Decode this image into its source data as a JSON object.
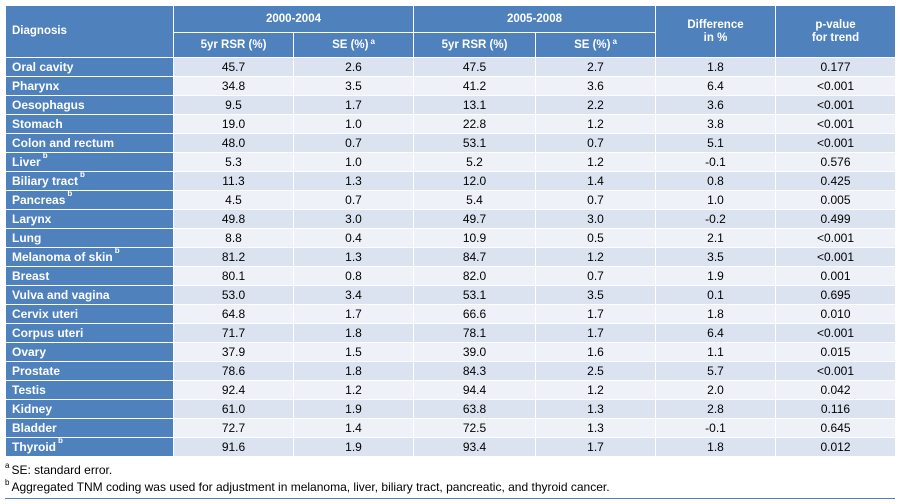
{
  "table": {
    "headers": {
      "diagnosis": "Diagnosis",
      "period1": "2000-2004",
      "period2": "2005-2008",
      "rsr": "5yr RSR (%)",
      "se": "SE (%)",
      "se_mark": "a",
      "difference": "Difference\nin %",
      "pvalue": "p-value\nfor trend"
    },
    "rows": [
      {
        "name": "Oral cavity",
        "mark": "",
        "rsr1": "45.7",
        "se1": "2.6",
        "rsr2": "47.5",
        "se2": "2.7",
        "diff": "1.8",
        "p": "0.177"
      },
      {
        "name": "Pharynx",
        "mark": "",
        "rsr1": "34.8",
        "se1": "3.5",
        "rsr2": "41.2",
        "se2": "3.6",
        "diff": "6.4",
        "p": "<0.001"
      },
      {
        "name": "Oesophagus",
        "mark": "",
        "rsr1": "9.5",
        "se1": "1.7",
        "rsr2": "13.1",
        "se2": "2.2",
        "diff": "3.6",
        "p": "<0.001"
      },
      {
        "name": "Stomach",
        "mark": "",
        "rsr1": "19.0",
        "se1": "1.0",
        "rsr2": "22.8",
        "se2": "1.2",
        "diff": "3.8",
        "p": "<0.001"
      },
      {
        "name": "Colon and rectum",
        "mark": "",
        "rsr1": "48.0",
        "se1": "0.7",
        "rsr2": "53.1",
        "se2": "0.7",
        "diff": "5.1",
        "p": "<0.001"
      },
      {
        "name": "Liver",
        "mark": "b",
        "rsr1": "5.3",
        "se1": "1.0",
        "rsr2": "5.2",
        "se2": "1.2",
        "diff": "-0.1",
        "p": "0.576"
      },
      {
        "name": "Biliary tract",
        "mark": "b",
        "rsr1": "11.3",
        "se1": "1.3",
        "rsr2": "12.0",
        "se2": "1.4",
        "diff": "0.8",
        "p": "0.425"
      },
      {
        "name": "Pancreas",
        "mark": "b",
        "rsr1": "4.5",
        "se1": "0.7",
        "rsr2": "5.4",
        "se2": "0.7",
        "diff": "1.0",
        "p": "0.005"
      },
      {
        "name": "Larynx",
        "mark": "",
        "rsr1": "49.8",
        "se1": "3.0",
        "rsr2": "49.7",
        "se2": "3.0",
        "diff": "-0.2",
        "p": "0.499"
      },
      {
        "name": "Lung",
        "mark": "",
        "rsr1": "8.8",
        "se1": "0.4",
        "rsr2": "10.9",
        "se2": "0.5",
        "diff": "2.1",
        "p": "<0.001"
      },
      {
        "name": "Melanoma of skin",
        "mark": "b",
        "rsr1": "81.2",
        "se1": "1.3",
        "rsr2": "84.7",
        "se2": "1.2",
        "diff": "3.5",
        "p": "<0.001"
      },
      {
        "name": "Breast",
        "mark": "",
        "rsr1": "80.1",
        "se1": "0.8",
        "rsr2": "82.0",
        "se2": "0.7",
        "diff": "1.9",
        "p": "0.001"
      },
      {
        "name": "Vulva and vagina",
        "mark": "",
        "rsr1": "53.0",
        "se1": "3.4",
        "rsr2": "53.1",
        "se2": "3.5",
        "diff": "0.1",
        "p": "0.695"
      },
      {
        "name": "Cervix uteri",
        "mark": "",
        "rsr1": "64.8",
        "se1": "1.7",
        "rsr2": "66.6",
        "se2": "1.7",
        "diff": "1.8",
        "p": "0.010"
      },
      {
        "name": "Corpus uteri",
        "mark": "",
        "rsr1": "71.7",
        "se1": "1.8",
        "rsr2": "78.1",
        "se2": "1.7",
        "diff": "6.4",
        "p": "<0.001"
      },
      {
        "name": "Ovary",
        "mark": "",
        "rsr1": "37.9",
        "se1": "1.5",
        "rsr2": "39.0",
        "se2": "1.6",
        "diff": "1.1",
        "p": "0.015"
      },
      {
        "name": "Prostate",
        "mark": "",
        "rsr1": "78.6",
        "se1": "1.8",
        "rsr2": "84.3",
        "se2": "2.5",
        "diff": "5.7",
        "p": "<0.001"
      },
      {
        "name": "Testis",
        "mark": "",
        "rsr1": "92.4",
        "se1": "1.2",
        "rsr2": "94.4",
        "se2": "1.2",
        "diff": "2.0",
        "p": "0.042"
      },
      {
        "name": "Kidney",
        "mark": "",
        "rsr1": "61.0",
        "se1": "1.9",
        "rsr2": "63.8",
        "se2": "1.3",
        "diff": "2.8",
        "p": "0.116"
      },
      {
        "name": "Bladder",
        "mark": "",
        "rsr1": "72.7",
        "se1": "1.4",
        "rsr2": "72.5",
        "se2": "1.3",
        "diff": "-0.1",
        "p": "0.645"
      },
      {
        "name": "Thyroid",
        "mark": "b",
        "rsr1": "91.6",
        "se1": "1.9",
        "rsr2": "93.4",
        "se2": "1.7",
        "diff": "1.8",
        "p": "0.012"
      }
    ]
  },
  "footnotes": {
    "a_mark": "a",
    "a_text": "SE: standard error.",
    "b_mark": "b",
    "b_text": "Aggregated TNM coding was used for adjustment in melanoma, liver, biliary tract, pancreatic, and thyroid cancer."
  },
  "colors": {
    "header_blue": "#4f81bd",
    "row_light": "#dbe3f0",
    "row_lighter": "#eef2f8"
  }
}
